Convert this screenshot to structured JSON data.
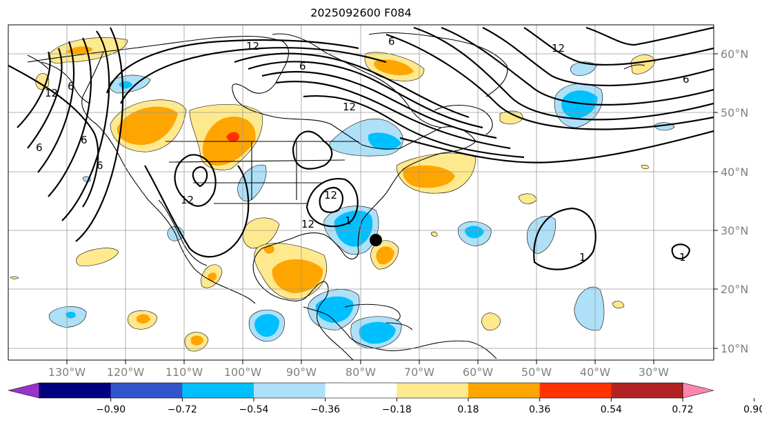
{
  "title": "2025092600 F084",
  "lon_labels": [
    "130°W",
    "120°W",
    "110°W",
    "100°W",
    "90°W",
    "80°W",
    "70°W",
    "60°W",
    "50°W",
    "40°W",
    "30°W"
  ],
  "lat_labels": [
    "60°N",
    "50°N",
    "40°N",
    "30°N",
    "20°N",
    "10°N"
  ],
  "colorbar": {
    "colors": [
      "#9933cc",
      "#000080",
      "#3355cc",
      "#00bfff",
      "#aee0f8",
      "#ffffff",
      "#ffe98e",
      "#ffa500",
      "#ff3300",
      "#b22222",
      "#ff85b0"
    ],
    "tick_labels": [
      "−0.90",
      "−0.72",
      "−0.54",
      "−0.36",
      "−0.18",
      "0.18",
      "0.36",
      "0.54",
      "0.72",
      "0.90"
    ]
  },
  "contour_labels": [
    "12",
    "12",
    "6",
    "6",
    "6",
    "6",
    "6",
    "6",
    "12",
    "12",
    "12",
    "12",
    "1",
    "1",
    "1",
    "12",
    "6"
  ],
  "marker": "storm-center"
}
